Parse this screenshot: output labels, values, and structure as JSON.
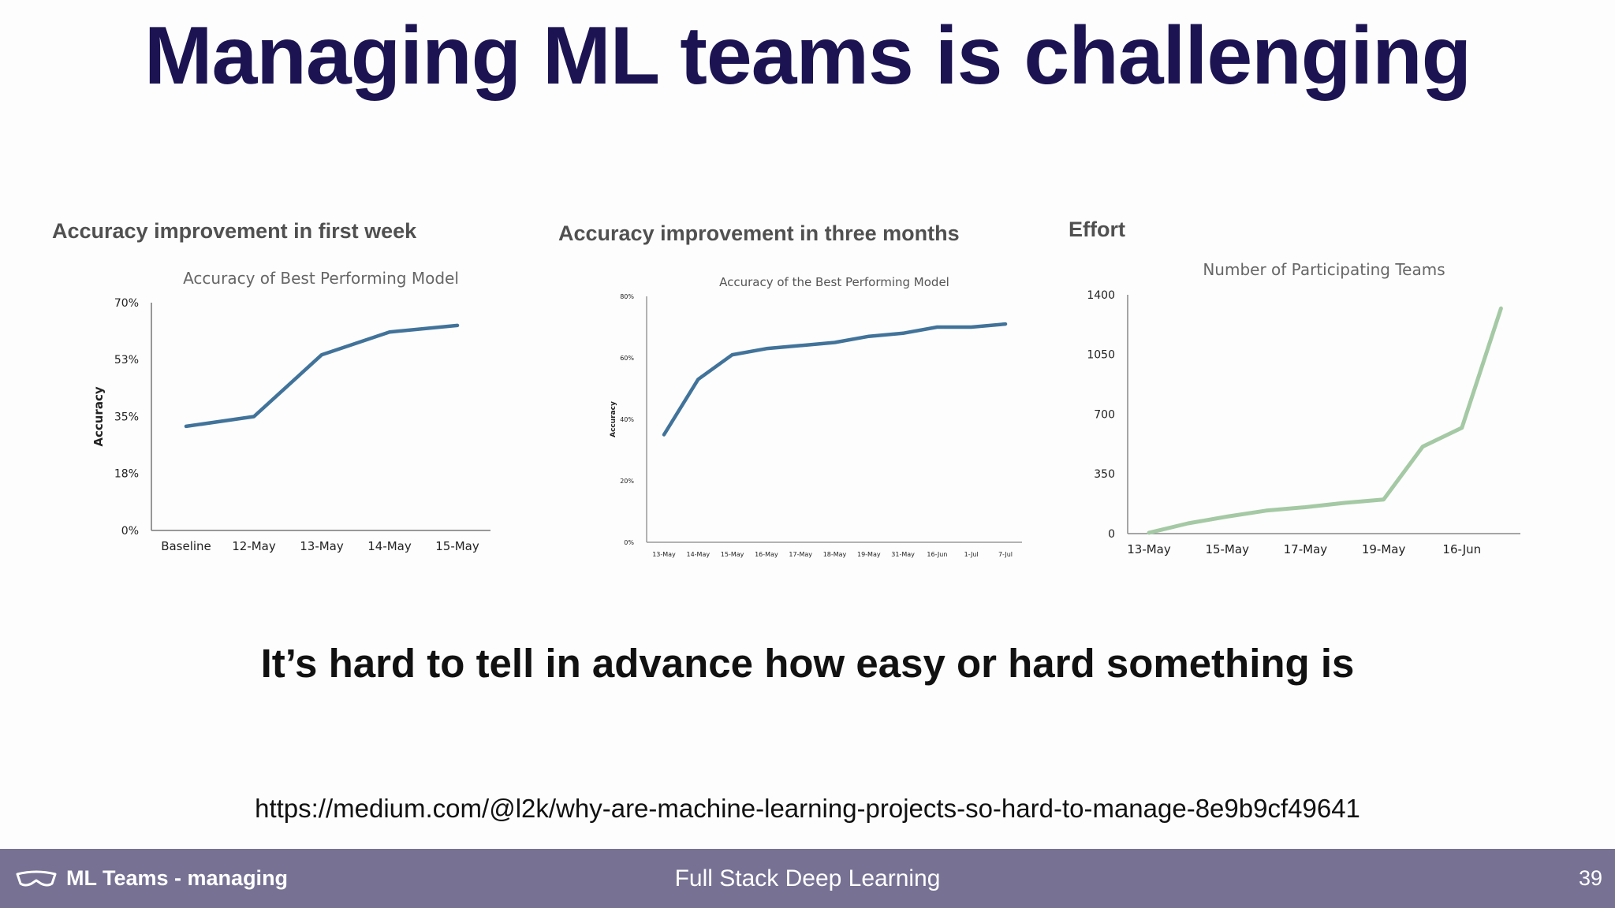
{
  "slide": {
    "title": "Managing ML teams is challenging",
    "subtitle": "It’s hard to tell in advance how easy or hard something is",
    "source_url": "https://medium.com/@l2k/why-are-machine-learning-projects-so-hard-to-manage-8e9b9cf49641"
  },
  "panels": [
    {
      "heading": "Accuracy improvement in first week"
    },
    {
      "heading": "Accuracy improvement in three months"
    },
    {
      "heading": "Effort"
    }
  ],
  "footer": {
    "section": "ML Teams - managing",
    "course": "Full Stack Deep Learning",
    "page_number": "39",
    "icon": "goggles-icon"
  },
  "colors": {
    "title": "#1c1452",
    "accuracy_line": "#41739a",
    "effort_line": "#a4c9a4",
    "footer_bg": "#777194"
  },
  "chart_data": [
    {
      "type": "line",
      "title": "Accuracy of Best Performing Model",
      "xlabel": "",
      "ylabel": "Accuracy",
      "categories": [
        "Baseline",
        "12-May",
        "13-May",
        "14-May",
        "15-May"
      ],
      "values": [
        32,
        35,
        54,
        61,
        63
      ],
      "yticks": [
        "0%",
        "18%",
        "35%",
        "53%",
        "70%"
      ],
      "ylim": [
        0,
        70
      ],
      "grid": false
    },
    {
      "type": "line",
      "title": "Accuracy of the Best Performing Model",
      "xlabel": "",
      "ylabel": "Accuracy",
      "categories": [
        "13-May",
        "14-May",
        "15-May",
        "16-May",
        "17-May",
        "18-May",
        "19-May",
        "31-May",
        "16-Jun",
        "1-Jul",
        "7-Jul"
      ],
      "values": [
        35,
        53,
        61,
        63,
        64,
        65,
        67,
        68,
        70,
        70,
        71
      ],
      "yticks": [
        "0%",
        "20%",
        "40%",
        "60%",
        "80%"
      ],
      "ylim": [
        0,
        80
      ],
      "grid": false
    },
    {
      "type": "line",
      "title": "Number of Participating Teams",
      "xlabel": "",
      "ylabel": "",
      "categories": [
        "13-May",
        "",
        "15-May",
        "",
        "17-May",
        "",
        "19-May",
        "",
        "16-Jun",
        ""
      ],
      "values": [
        5,
        60,
        100,
        135,
        155,
        180,
        200,
        510,
        620,
        1320
      ],
      "yticks": [
        "0",
        "350",
        "700",
        "1050",
        "1400"
      ],
      "ylim": [
        0,
        1400
      ],
      "grid": false
    }
  ]
}
